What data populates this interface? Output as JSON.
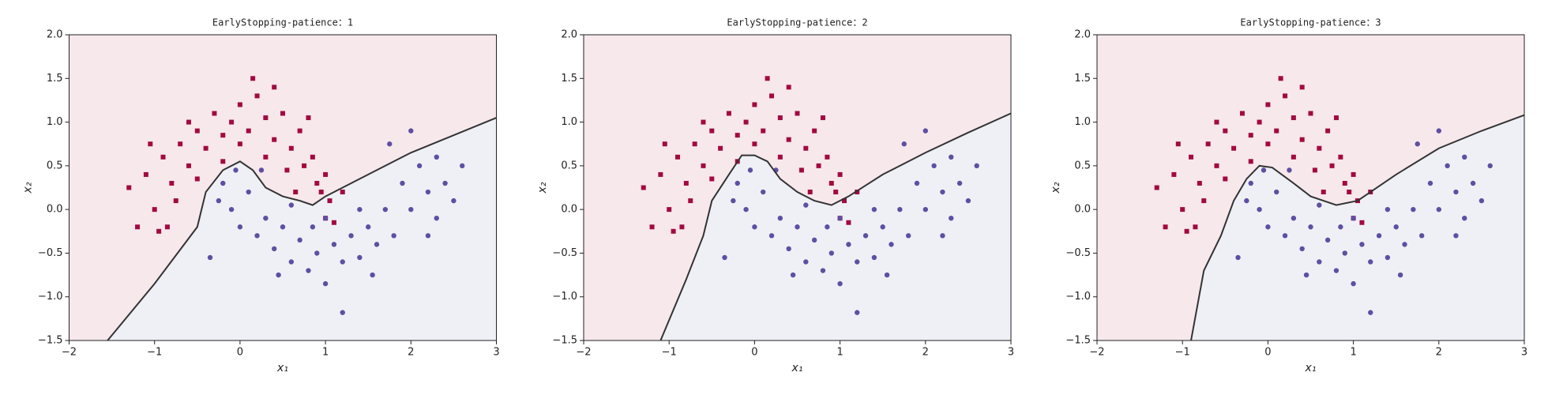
{
  "chart_data": [
    {
      "type": "scatter",
      "title": "EarlyStopping-patience：1",
      "xlabel": "x₁",
      "ylabel": "x₂",
      "xlim": [
        -2,
        3
      ],
      "ylim": [
        -1.5,
        2
      ],
      "xticks": [
        {
          "value": -2,
          "label": "−2"
        },
        {
          "value": -1,
          "label": "−1"
        },
        0,
        1,
        2,
        3
      ],
      "yticks": [
        {
          "value": -1.5,
          "label": "−1.5"
        },
        {
          "value": -1,
          "label": "−1.0"
        },
        {
          "value": -0.5,
          "label": "−0.5"
        },
        {
          "value": 0,
          "label": "0.0"
        },
        {
          "value": 0.5,
          "label": "0.5"
        },
        {
          "value": 1,
          "label": "1.0"
        },
        {
          "value": 1.5,
          "label": "1.5"
        },
        {
          "value": 2,
          "label": "2.0"
        }
      ],
      "fill_above": "#f7e8ec",
      "fill_below": "#eff0f6",
      "boundary": {
        "color": "#333333",
        "x": [
          -1.55,
          -1.0,
          -0.5,
          -0.4,
          -0.2,
          0.0,
          0.15,
          0.3,
          0.5,
          0.7,
          0.85,
          1.0,
          1.5,
          2.0,
          2.5,
          3.0
        ],
        "y": [
          -1.5,
          -0.85,
          -0.2,
          0.2,
          0.45,
          0.55,
          0.45,
          0.25,
          0.15,
          0.1,
          0.05,
          0.15,
          0.4,
          0.65,
          0.85,
          1.05
        ]
      },
      "series": [
        {
          "color": "#a20a41",
          "marker": "s",
          "x": [
            -1.3,
            -1.1,
            -1.0,
            -0.9,
            -0.8,
            -0.95,
            -0.7,
            -0.6,
            -0.5,
            -0.4,
            -0.3,
            -0.2,
            -0.1,
            0.0,
            0.1,
            0.2,
            0.3,
            0.4,
            0.5,
            0.6,
            0.7,
            0.75,
            0.85,
            0.9,
            1.0,
            1.05,
            1.0,
            0.95,
            -1.2,
            -0.75,
            -0.5,
            0.3,
            0.0,
            -0.2,
            0.55,
            -1.05,
            0.15,
            0.8,
            1.1,
            -0.6,
            0.4,
            -0.85,
            1.2,
            0.65
          ],
          "values": [
            0.25,
            0.4,
            0.0,
            0.6,
            0.3,
            -0.25,
            0.75,
            0.5,
            0.9,
            0.7,
            1.1,
            0.85,
            1.0,
            1.2,
            0.9,
            1.3,
            1.05,
            0.8,
            1.1,
            0.7,
            0.9,
            0.5,
            0.6,
            0.3,
            0.4,
            0.1,
            -0.1,
            0.2,
            -0.2,
            0.1,
            0.35,
            0.6,
            0.75,
            0.55,
            0.45,
            0.75,
            1.5,
            1.05,
            -0.15,
            1.0,
            1.4,
            -0.2,
            0.2,
            0.2
          ]
        },
        {
          "color": "#5e4fa2",
          "marker": "o",
          "x": [
            -0.35,
            -0.2,
            -0.1,
            0.0,
            0.1,
            0.2,
            0.3,
            0.4,
            0.5,
            0.6,
            0.7,
            0.8,
            0.9,
            1.0,
            1.1,
            1.2,
            1.3,
            1.4,
            1.5,
            1.6,
            1.7,
            1.8,
            1.9,
            2.0,
            2.1,
            2.2,
            2.3,
            2.4,
            2.5,
            2.6,
            1.75,
            2.0,
            2.2,
            1.2,
            0.25,
            -0.05,
            0.6,
            1.0,
            1.4,
            2.3,
            0.85,
            0.45,
            1.55,
            -0.25
          ],
          "values": [
            -0.55,
            0.3,
            0.0,
            -0.2,
            0.2,
            -0.3,
            -0.1,
            -0.45,
            -0.2,
            -0.6,
            -0.35,
            -0.7,
            -0.5,
            -0.85,
            -0.4,
            -0.6,
            -0.3,
            -0.55,
            -0.2,
            -0.4,
            0.0,
            -0.3,
            0.3,
            0.0,
            0.5,
            0.2,
            0.6,
            0.3,
            0.1,
            0.5,
            0.75,
            0.9,
            -0.3,
            -1.18,
            0.45,
            0.45,
            0.05,
            -0.1,
            0.0,
            -0.1,
            -0.2,
            -0.75,
            -0.75,
            0.1
          ]
        }
      ]
    },
    {
      "type": "scatter",
      "title": "EarlyStopping-patience：2",
      "xlabel": "x₁",
      "ylabel": "x₂",
      "xlim": [
        -2,
        3
      ],
      "ylim": [
        -1.5,
        2
      ],
      "xticks": [
        {
          "value": -2,
          "label": "−2"
        },
        {
          "value": -1,
          "label": "−1"
        },
        0,
        1,
        2,
        3
      ],
      "yticks": [
        {
          "value": -1.5,
          "label": "−1.5"
        },
        {
          "value": -1,
          "label": "−1.0"
        },
        {
          "value": -0.5,
          "label": "−0.5"
        },
        {
          "value": 0,
          "label": "0.0"
        },
        {
          "value": 0.5,
          "label": "0.5"
        },
        {
          "value": 1,
          "label": "1.0"
        },
        {
          "value": 1.5,
          "label": "1.5"
        },
        {
          "value": 2,
          "label": "2.0"
        }
      ],
      "fill_above": "#f7e8ec",
      "fill_below": "#eff0f6",
      "boundary": {
        "color": "#333333",
        "x": [
          -1.1,
          -0.8,
          -0.6,
          -0.5,
          -0.3,
          -0.15,
          0.0,
          0.15,
          0.3,
          0.5,
          0.7,
          0.9,
          1.1,
          1.5,
          2.0,
          2.5,
          3.0
        ],
        "y": [
          -1.5,
          -0.8,
          -0.3,
          0.1,
          0.4,
          0.62,
          0.62,
          0.55,
          0.35,
          0.2,
          0.1,
          0.05,
          0.15,
          0.4,
          0.65,
          0.88,
          1.1
        ]
      },
      "series": [
        {
          "color": "#a20a41",
          "marker": "s",
          "x": [
            -1.3,
            -1.1,
            -1.0,
            -0.9,
            -0.8,
            -0.95,
            -0.7,
            -0.6,
            -0.5,
            -0.4,
            -0.3,
            -0.2,
            -0.1,
            0.0,
            0.1,
            0.2,
            0.3,
            0.4,
            0.5,
            0.6,
            0.7,
            0.75,
            0.85,
            0.9,
            1.0,
            1.05,
            1.0,
            0.95,
            -1.2,
            -0.75,
            -0.5,
            0.3,
            0.0,
            -0.2,
            0.55,
            -1.05,
            0.15,
            0.8,
            1.1,
            -0.6,
            0.4,
            -0.85,
            1.2,
            0.65
          ],
          "values": [
            0.25,
            0.4,
            0.0,
            0.6,
            0.3,
            -0.25,
            0.75,
            0.5,
            0.9,
            0.7,
            1.1,
            0.85,
            1.0,
            1.2,
            0.9,
            1.3,
            1.05,
            0.8,
            1.1,
            0.7,
            0.9,
            0.5,
            0.6,
            0.3,
            0.4,
            0.1,
            -0.1,
            0.2,
            -0.2,
            0.1,
            0.35,
            0.6,
            0.75,
            0.55,
            0.45,
            0.75,
            1.5,
            1.05,
            -0.15,
            1.0,
            1.4,
            -0.2,
            0.2,
            0.2
          ]
        },
        {
          "color": "#5e4fa2",
          "marker": "o",
          "x": [
            -0.35,
            -0.2,
            -0.1,
            0.0,
            0.1,
            0.2,
            0.3,
            0.4,
            0.5,
            0.6,
            0.7,
            0.8,
            0.9,
            1.0,
            1.1,
            1.2,
            1.3,
            1.4,
            1.5,
            1.6,
            1.7,
            1.8,
            1.9,
            2.0,
            2.1,
            2.2,
            2.3,
            2.4,
            2.5,
            2.6,
            1.75,
            2.0,
            2.2,
            1.2,
            0.25,
            -0.05,
            0.6,
            1.0,
            1.4,
            2.3,
            0.85,
            0.45,
            1.55,
            -0.25
          ],
          "values": [
            -0.55,
            0.3,
            0.0,
            -0.2,
            0.2,
            -0.3,
            -0.1,
            -0.45,
            -0.2,
            -0.6,
            -0.35,
            -0.7,
            -0.5,
            -0.85,
            -0.4,
            -0.6,
            -0.3,
            -0.55,
            -0.2,
            -0.4,
            0.0,
            -0.3,
            0.3,
            0.0,
            0.5,
            0.2,
            0.6,
            0.3,
            0.1,
            0.5,
            0.75,
            0.9,
            -0.3,
            -1.18,
            0.45,
            0.45,
            0.05,
            -0.1,
            0.0,
            -0.1,
            -0.2,
            -0.75,
            -0.75,
            0.1
          ]
        }
      ]
    },
    {
      "type": "scatter",
      "title": "EarlyStopping-patience：3",
      "xlabel": "x₁",
      "ylabel": "x₂",
      "xlim": [
        -2,
        3
      ],
      "ylim": [
        -1.5,
        2
      ],
      "xticks": [
        {
          "value": -2,
          "label": "−2"
        },
        {
          "value": -1,
          "label": "−1"
        },
        0,
        1,
        2,
        3
      ],
      "yticks": [
        {
          "value": -1.5,
          "label": "−1.5"
        },
        {
          "value": -1,
          "label": "−1.0"
        },
        {
          "value": -0.5,
          "label": "−0.5"
        },
        {
          "value": 0,
          "label": "0.0"
        },
        {
          "value": 0.5,
          "label": "0.5"
        },
        {
          "value": 1,
          "label": "1.0"
        },
        {
          "value": 1.5,
          "label": "1.5"
        },
        {
          "value": 2,
          "label": "2.0"
        }
      ],
      "fill_above": "#f7e8ec",
      "fill_below": "#eff0f6",
      "boundary": {
        "color": "#333333",
        "x": [
          -0.9,
          -0.75,
          -0.55,
          -0.4,
          -0.25,
          -0.1,
          0.05,
          0.3,
          0.5,
          0.8,
          1.05,
          1.5,
          2.0,
          2.5,
          3.0
        ],
        "y": [
          -1.5,
          -0.7,
          -0.3,
          0.1,
          0.35,
          0.5,
          0.48,
          0.3,
          0.15,
          0.05,
          0.1,
          0.4,
          0.7,
          0.9,
          1.08
        ]
      },
      "series": [
        {
          "color": "#a20a41",
          "marker": "s",
          "x": [
            -1.3,
            -1.1,
            -1.0,
            -0.9,
            -0.8,
            -0.95,
            -0.7,
            -0.6,
            -0.5,
            -0.4,
            -0.3,
            -0.2,
            -0.1,
            0.0,
            0.1,
            0.2,
            0.3,
            0.4,
            0.5,
            0.6,
            0.7,
            0.75,
            0.85,
            0.9,
            1.0,
            1.05,
            1.0,
            0.95,
            -1.2,
            -0.75,
            -0.5,
            0.3,
            0.0,
            -0.2,
            0.55,
            -1.05,
            0.15,
            0.8,
            1.1,
            -0.6,
            0.4,
            -0.85,
            1.2,
            0.65
          ],
          "values": [
            0.25,
            0.4,
            0.0,
            0.6,
            0.3,
            -0.25,
            0.75,
            0.5,
            0.9,
            0.7,
            1.1,
            0.85,
            1.0,
            1.2,
            0.9,
            1.3,
            1.05,
            0.8,
            1.1,
            0.7,
            0.9,
            0.5,
            0.6,
            0.3,
            0.4,
            0.1,
            -0.1,
            0.2,
            -0.2,
            0.1,
            0.35,
            0.6,
            0.75,
            0.55,
            0.45,
            0.75,
            1.5,
            1.05,
            -0.15,
            1.0,
            1.4,
            -0.2,
            0.2,
            0.2
          ]
        },
        {
          "color": "#5e4fa2",
          "marker": "o",
          "x": [
            -0.35,
            -0.2,
            -0.1,
            0.0,
            0.1,
            0.2,
            0.3,
            0.4,
            0.5,
            0.6,
            0.7,
            0.8,
            0.9,
            1.0,
            1.1,
            1.2,
            1.3,
            1.4,
            1.5,
            1.6,
            1.7,
            1.8,
            1.9,
            2.0,
            2.1,
            2.2,
            2.3,
            2.4,
            2.5,
            2.6,
            1.75,
            2.0,
            2.2,
            1.2,
            0.25,
            -0.05,
            0.6,
            1.0,
            1.4,
            2.3,
            0.85,
            0.45,
            1.55,
            -0.25
          ],
          "values": [
            -0.55,
            0.3,
            0.0,
            -0.2,
            0.2,
            -0.3,
            -0.1,
            -0.45,
            -0.2,
            -0.6,
            -0.35,
            -0.7,
            -0.5,
            -0.85,
            -0.4,
            -0.6,
            -0.3,
            -0.55,
            -0.2,
            -0.4,
            0.0,
            -0.3,
            0.3,
            0.0,
            0.5,
            0.2,
            0.6,
            0.3,
            0.1,
            0.5,
            0.75,
            0.9,
            -0.3,
            -1.18,
            0.45,
            0.45,
            0.05,
            -0.1,
            0.0,
            -0.1,
            -0.2,
            -0.75,
            -0.75,
            0.1
          ]
        }
      ]
    }
  ]
}
